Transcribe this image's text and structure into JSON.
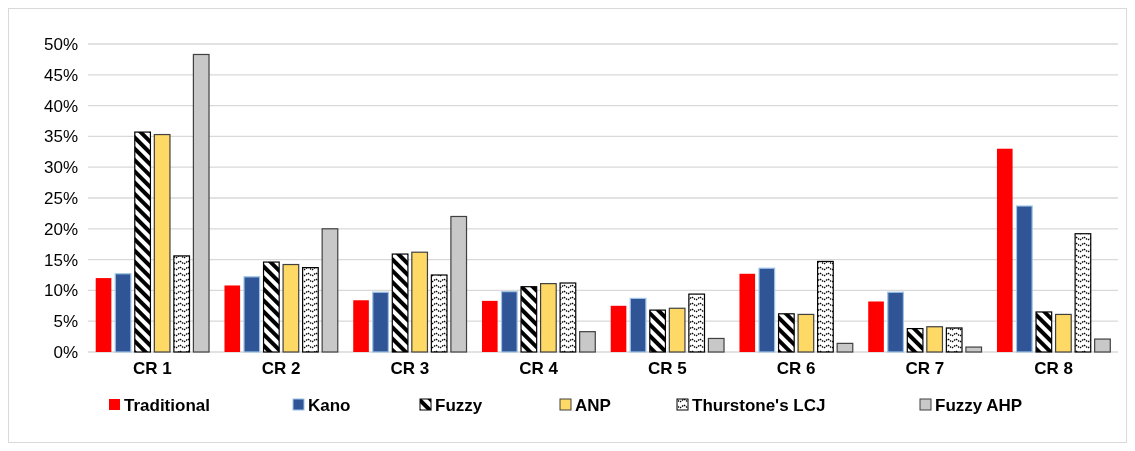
{
  "chart_data": {
    "type": "bar",
    "categories": [
      "CR 1",
      "CR 2",
      "CR 3",
      "CR 4",
      "CR 5",
      "CR 6",
      "CR 7",
      "CR 8"
    ],
    "series": [
      {
        "name": "Traditional",
        "color": "#ff0000",
        "values": [
          12.0,
          10.8,
          8.4,
          8.3,
          7.5,
          12.7,
          8.2,
          33.0
        ]
      },
      {
        "name": "Kano",
        "color": "#2f5597",
        "values": [
          12.7,
          12.2,
          9.7,
          9.8,
          8.7,
          13.6,
          9.7,
          23.7
        ]
      },
      {
        "name": "Fuzzy",
        "color": "#000000",
        "values": [
          35.7,
          14.6,
          15.9,
          10.6,
          6.8,
          6.2,
          3.8,
          6.5
        ]
      },
      {
        "name": "ANP",
        "color": "#ffd966",
        "values": [
          35.3,
          14.2,
          16.2,
          11.1,
          7.1,
          6.1,
          4.1,
          6.1
        ]
      },
      {
        "name": "Thurstone's LCJ",
        "color": "#000000",
        "values": [
          15.6,
          13.7,
          12.5,
          11.2,
          9.4,
          14.7,
          3.9,
          19.2
        ]
      },
      {
        "name": "Fuzzy AHP",
        "color": "#c8c8c8",
        "values": [
          48.3,
          20.0,
          22.0,
          3.3,
          2.2,
          1.4,
          0.8,
          2.1
        ]
      }
    ],
    "ylim": [
      0,
      50
    ],
    "yticks": [
      {
        "value": 0,
        "label": "0%"
      },
      {
        "value": 5,
        "label": "5%"
      },
      {
        "value": 10,
        "label": "10%"
      },
      {
        "value": 15,
        "label": "15%"
      },
      {
        "value": 20,
        "label": "20%"
      },
      {
        "value": 25,
        "label": "25%"
      },
      {
        "value": 30,
        "label": "30%"
      },
      {
        "value": 35,
        "label": "35%"
      },
      {
        "value": 40,
        "label": "40%"
      },
      {
        "value": 45,
        "label": "45%"
      },
      {
        "value": 50,
        "label": "50%"
      }
    ],
    "grid": "y",
    "legend": "bottom"
  }
}
